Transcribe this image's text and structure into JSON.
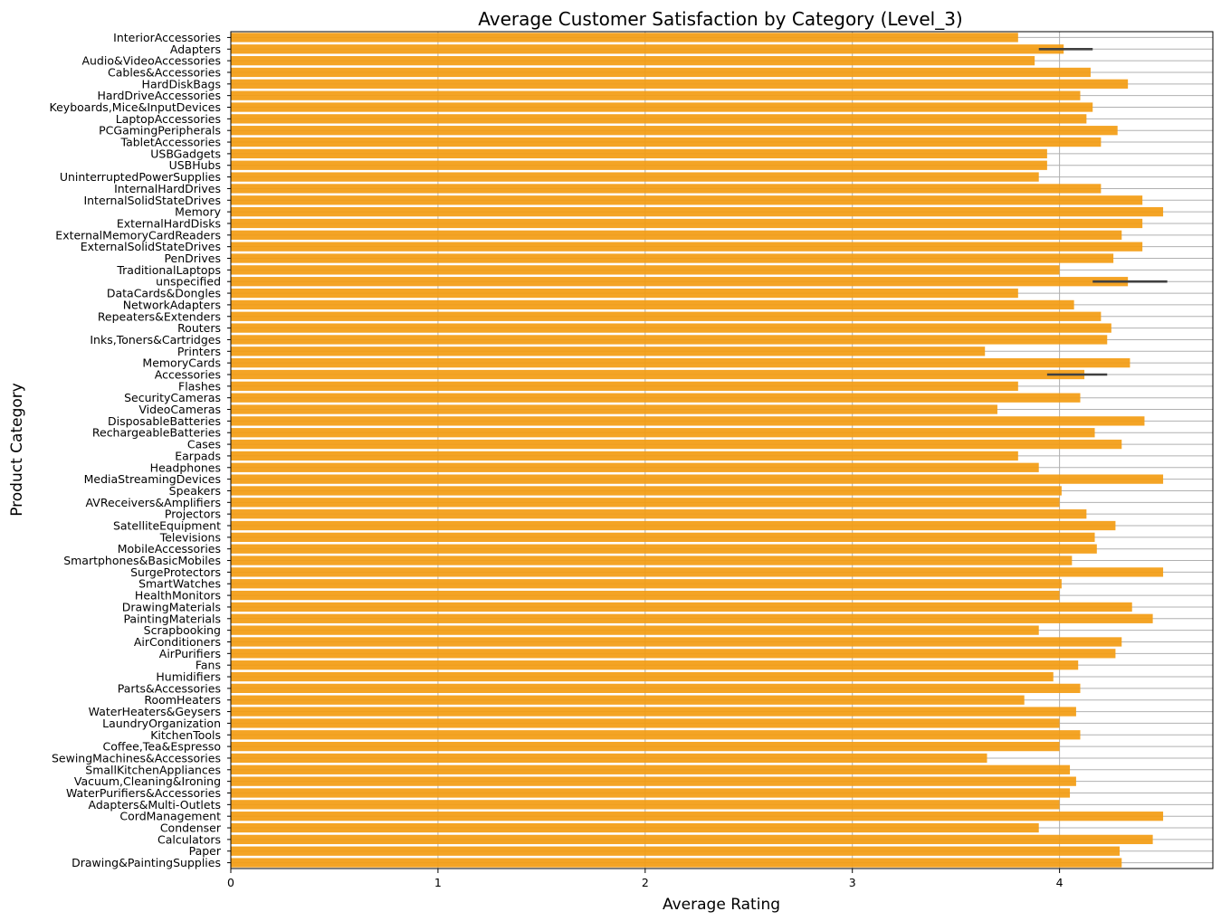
{
  "chart_data": {
    "type": "bar",
    "orientation": "horizontal",
    "title": "Average Customer Satisfaction by Category (Level_3)",
    "xlabel": "Average Rating",
    "ylabel": "Product Category",
    "xlim": [
      0,
      4.74
    ],
    "xticks": [
      0,
      1,
      2,
      3,
      4
    ],
    "grid": true,
    "bar_color": "#f39c12",
    "errorbar_color": "#404040",
    "categories": [
      "InteriorAccessories",
      "Adapters",
      "Audio&VideoAccessories",
      "Cables&Accessories",
      "HardDiskBags",
      "HardDriveAccessories",
      "Keyboards,Mice&InputDevices",
      "LaptopAccessories",
      "PCGamingPeripherals",
      "TabletAccessories",
      "USBGadgets",
      "USBHubs",
      "UninterruptedPowerSupplies",
      "InternalHardDrives",
      "InternalSolidStateDrives",
      "Memory",
      "ExternalHardDisks",
      "ExternalMemoryCardReaders",
      "ExternalSolidStateDrives",
      "PenDrives",
      "TraditionalLaptops",
      "unspecified",
      "DataCards&Dongles",
      "NetworkAdapters",
      "Repeaters&Extenders",
      "Routers",
      "Inks,Toners&Cartridges",
      "Printers",
      "MemoryCards",
      "Accessories",
      "Flashes",
      "SecurityCameras",
      "VideoCameras",
      "DisposableBatteries",
      "RechargeableBatteries",
      "Cases",
      "Earpads",
      "Headphones",
      "MediaStreamingDevices",
      "Speakers",
      "AVReceivers&Amplifiers",
      "Projectors",
      "SatelliteEquipment",
      "Televisions",
      "MobileAccessories",
      "Smartphones&BasicMobiles",
      "SurgeProtectors",
      "SmartWatches",
      "HealthMonitors",
      "DrawingMaterials",
      "PaintingMaterials",
      "Scrapbooking",
      "AirConditioners",
      "AirPurifiers",
      "Fans",
      "Humidifiers",
      "Parts&Accessories",
      "RoomHeaters",
      "WaterHeaters&Geysers",
      "LaundryOrganization",
      "KitchenTools",
      "Coffee,Tea&Espresso",
      "SewingMachines&Accessories",
      "SmallKitchenAppliances",
      "Vacuum,Cleaning&Ironing",
      "WaterPurifiers&Accessories",
      "Adapters&Multi-Outlets",
      "CordManagement",
      "Condenser",
      "Calculators",
      "Paper",
      "Drawing&PaintingSupplies"
    ],
    "values": [
      3.8,
      4.02,
      3.88,
      4.15,
      4.33,
      4.1,
      4.16,
      4.13,
      4.28,
      4.2,
      3.94,
      3.94,
      3.9,
      4.2,
      4.4,
      4.5,
      4.4,
      4.3,
      4.4,
      4.26,
      4.0,
      4.33,
      3.8,
      4.07,
      4.2,
      4.25,
      4.23,
      3.64,
      4.34,
      4.12,
      3.8,
      4.1,
      3.7,
      4.41,
      4.17,
      4.3,
      3.8,
      3.9,
      4.5,
      4.01,
      4.0,
      4.13,
      4.27,
      4.17,
      4.18,
      4.06,
      4.5,
      4.01,
      4.0,
      4.35,
      4.45,
      3.9,
      4.3,
      4.27,
      4.09,
      3.97,
      4.1,
      3.83,
      4.08,
      4.0,
      4.1,
      4.0,
      3.65,
      4.05,
      4.08,
      4.05,
      4.0,
      4.5,
      3.9,
      4.45,
      4.29,
      4.3
    ],
    "errorbars": [
      {
        "category": "Adapters",
        "low": 3.9,
        "high": 4.16
      },
      {
        "category": "unspecified",
        "low": 4.16,
        "high": 4.52
      },
      {
        "category": "Accessories",
        "low": 3.94,
        "high": 4.23
      }
    ]
  }
}
